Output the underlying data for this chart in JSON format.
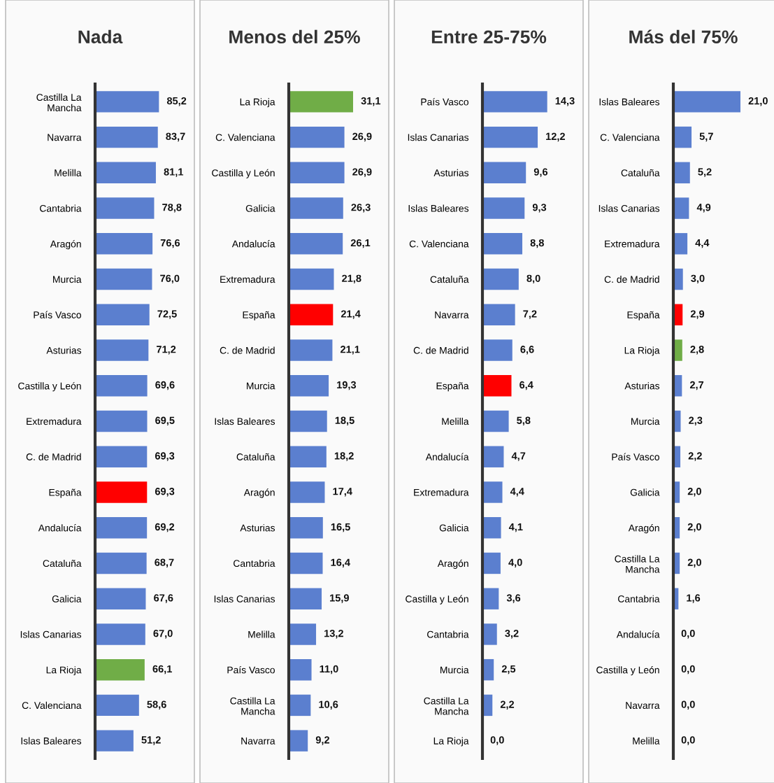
{
  "chart_data": [
    {
      "type": "bar",
      "orientation": "horizontal",
      "title": "Nada",
      "tick_labels": "y",
      "data_labels": true,
      "categories": [
        "Castilla La Mancha",
        "Navarra",
        "Melilla",
        "Cantabria",
        "Aragón",
        "Murcia",
        "País Vasco",
        "Asturias",
        "Castilla y León",
        "Extremadura",
        "C. de Madrid",
        "España",
        "Andalucía",
        "Cataluña",
        "Galicia",
        "Islas Canarias",
        "La Rioja",
        "C. Valenciana",
        "Islas Baleares"
      ],
      "values": [
        85.2,
        83.7,
        81.1,
        78.8,
        76.6,
        76.0,
        72.5,
        71.2,
        69.6,
        69.5,
        69.3,
        69.3,
        69.2,
        68.7,
        67.6,
        67.0,
        66.1,
        58.6,
        51.2
      ],
      "value_labels": [
        "85,2",
        "83,7",
        "81,1",
        "78,8",
        "76,6",
        "76,0",
        "72,5",
        "71,2",
        "69,6",
        "69,5",
        "69,3",
        "69,3",
        "69,2",
        "68,7",
        "67,6",
        "67,0",
        "66,1",
        "58,6",
        "51,2"
      ],
      "colors": [
        "#5b7fcf",
        "#5b7fcf",
        "#5b7fcf",
        "#5b7fcf",
        "#5b7fcf",
        "#5b7fcf",
        "#5b7fcf",
        "#5b7fcf",
        "#5b7fcf",
        "#5b7fcf",
        "#5b7fcf",
        "#ff0000",
        "#5b7fcf",
        "#5b7fcf",
        "#5b7fcf",
        "#5b7fcf",
        "#70ad47",
        "#5b7fcf",
        "#5b7fcf"
      ]
    },
    {
      "type": "bar",
      "orientation": "horizontal",
      "title": "Menos del 25%",
      "tick_labels": "y",
      "data_labels": true,
      "categories": [
        "La Rioja",
        "C. Valenciana",
        "Castilla y León",
        "Galicia",
        "Andalucía",
        "Extremadura",
        "España",
        "C. de Madrid",
        "Murcia",
        "Islas Baleares",
        "Cataluña",
        "Aragón",
        "Asturias",
        "Cantabria",
        "Islas Canarias",
        "Melilla",
        "País Vasco",
        "Castilla La Mancha",
        "Navarra"
      ],
      "values": [
        31.1,
        26.9,
        26.9,
        26.3,
        26.1,
        21.8,
        21.4,
        21.1,
        19.3,
        18.5,
        18.2,
        17.4,
        16.5,
        16.4,
        15.9,
        13.2,
        11.0,
        10.6,
        9.2
      ],
      "value_labels": [
        "31,1",
        "26,9",
        "26,9",
        "26,3",
        "26,1",
        "21,8",
        "21,4",
        "21,1",
        "19,3",
        "18,5",
        "18,2",
        "17,4",
        "16,5",
        "16,4",
        "15,9",
        "13,2",
        "11,0",
        "10,6",
        "9,2"
      ],
      "colors": [
        "#70ad47",
        "#5b7fcf",
        "#5b7fcf",
        "#5b7fcf",
        "#5b7fcf",
        "#5b7fcf",
        "#ff0000",
        "#5b7fcf",
        "#5b7fcf",
        "#5b7fcf",
        "#5b7fcf",
        "#5b7fcf",
        "#5b7fcf",
        "#5b7fcf",
        "#5b7fcf",
        "#5b7fcf",
        "#5b7fcf",
        "#5b7fcf",
        "#5b7fcf"
      ]
    },
    {
      "type": "bar",
      "orientation": "horizontal",
      "title": "Entre 25-75%",
      "tick_labels": "y",
      "data_labels": true,
      "categories": [
        "País Vasco",
        "Islas Canarias",
        "Asturias",
        "Islas Baleares",
        "C. Valenciana",
        "Cataluña",
        "Navarra",
        "C. de Madrid",
        "España",
        "Melilla",
        "Andalucía",
        "Extremadura",
        "Galicia",
        "Aragón",
        "Castilla y León",
        "Cantabria",
        "Murcia",
        "Castilla La Mancha",
        "La Rioja"
      ],
      "values": [
        14.3,
        12.2,
        9.6,
        9.3,
        8.8,
        8.0,
        7.2,
        6.6,
        6.4,
        5.8,
        4.7,
        4.4,
        4.1,
        4.0,
        3.6,
        3.2,
        2.5,
        2.2,
        0.0
      ],
      "value_labels": [
        "14,3",
        "12,2",
        "9,6",
        "9,3",
        "8,8",
        "8,0",
        "7,2",
        "6,6",
        "6,4",
        "5,8",
        "4,7",
        "4,4",
        "4,1",
        "4,0",
        "3,6",
        "3,2",
        "2,5",
        "2,2",
        "0,0"
      ],
      "colors": [
        "#5b7fcf",
        "#5b7fcf",
        "#5b7fcf",
        "#5b7fcf",
        "#5b7fcf",
        "#5b7fcf",
        "#5b7fcf",
        "#5b7fcf",
        "#ff0000",
        "#5b7fcf",
        "#5b7fcf",
        "#5b7fcf",
        "#5b7fcf",
        "#5b7fcf",
        "#5b7fcf",
        "#5b7fcf",
        "#5b7fcf",
        "#5b7fcf",
        "#5b7fcf"
      ]
    },
    {
      "type": "bar",
      "orientation": "horizontal",
      "title": "Más del 75%",
      "tick_labels": "y",
      "data_labels": true,
      "categories": [
        "Islas Baleares",
        "C. Valenciana",
        "Cataluña",
        "Islas Canarias",
        "Extremadura",
        "C. de Madrid",
        "España",
        "La Rioja",
        "Asturias",
        "Murcia",
        "País Vasco",
        "Galicia",
        "Aragón",
        "Castilla La Mancha",
        "Cantabria",
        "Andalucía",
        "Castilla y León",
        "Navarra",
        "Melilla"
      ],
      "values": [
        21.0,
        5.7,
        5.2,
        4.9,
        4.4,
        3.0,
        2.9,
        2.8,
        2.7,
        2.3,
        2.2,
        2.0,
        2.0,
        2.0,
        1.6,
        0.0,
        0.0,
        0.0,
        0.0
      ],
      "value_labels": [
        "21,0",
        "5,7",
        "5,2",
        "4,9",
        "4,4",
        "3,0",
        "2,9",
        "2,8",
        "2,7",
        "2,3",
        "2,2",
        "2,0",
        "2,0",
        "2,0",
        "1,6",
        "0,0",
        "0,0",
        "0,0",
        "0,0"
      ],
      "colors": [
        "#5b7fcf",
        "#5b7fcf",
        "#5b7fcf",
        "#5b7fcf",
        "#5b7fcf",
        "#5b7fcf",
        "#ff0000",
        "#70ad47",
        "#5b7fcf",
        "#5b7fcf",
        "#5b7fcf",
        "#5b7fcf",
        "#5b7fcf",
        "#5b7fcf",
        "#5b7fcf",
        "#5b7fcf",
        "#5b7fcf",
        "#5b7fcf",
        "#5b7fcf"
      ]
    }
  ]
}
